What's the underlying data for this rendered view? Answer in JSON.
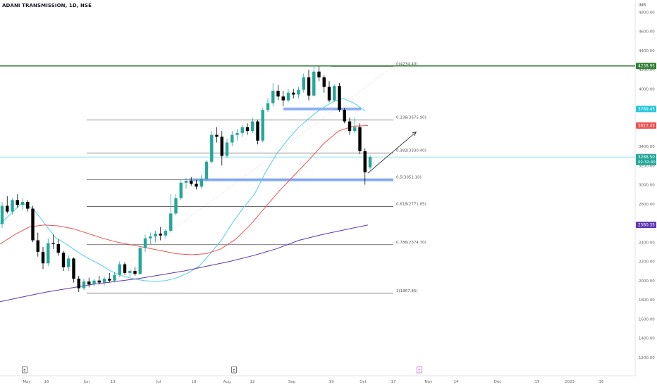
{
  "header": {
    "symbol_title": "ADANI TRANSMISSION, 1D, NSE",
    "currency": "INR"
  },
  "chart_data": {
    "type": "candlestick",
    "title": "ADANI TRANSMISSION, 1D, NSE",
    "price_axis": {
      "range": [
        1100,
        4800
      ],
      "ticks": [
        1200,
        1400,
        1600,
        1800,
        2000,
        2200,
        2400,
        2600,
        2800,
        3000,
        3200,
        3400,
        3600,
        3800,
        4000,
        4200,
        4400,
        4600,
        4800
      ],
      "unit": "INR"
    },
    "time_axis": {
      "labels": [
        "May",
        "16",
        "Jun",
        "13",
        "Jul",
        "18",
        "Aug",
        "12",
        "Sep",
        "19",
        "Oct",
        "17",
        "Nov",
        "14",
        "Dec",
        "19",
        "2023",
        "16"
      ],
      "event_markers": [
        {
          "label": "E",
          "at": "May"
        },
        {
          "label": "E",
          "at": "Aug"
        },
        {
          "label": "E",
          "at": "Nov",
          "style": "upcoming"
        }
      ]
    },
    "price_labels": [
      {
        "value": "4238.95",
        "color": "#2e7d32"
      },
      {
        "value": "3789.45",
        "color": "#26c6da"
      },
      {
        "value": "3617.45",
        "color": "#ef5350"
      },
      {
        "value": "3288.50",
        "sub": "02:32:40",
        "color": "#26a69a"
      },
      {
        "value": "2580.35",
        "color": "#5e35b1"
      }
    ],
    "horizontal_lines": [
      {
        "name": "resistance",
        "value": 4238.95,
        "color": "#2e7d32"
      },
      {
        "name": "last-price",
        "value": 3288.5,
        "color": "#80deea"
      }
    ],
    "fibonacci": {
      "color": "#555555",
      "levels": [
        {
          "label": "0(4234.40)",
          "value": 4234.4
        },
        {
          "label": "0.236(3675.90)",
          "value": 3675.9
        },
        {
          "label": "0.382(3330.40)",
          "value": 3330.4
        },
        {
          "label": "0.5(3051.10)",
          "value": 3051.1
        },
        {
          "label": "0.618(2771.85)",
          "value": 2771.85
        },
        {
          "label": "0.786(2374.30)",
          "value": 2374.3
        },
        {
          "label": "1(1867.85)",
          "value": 1867.85
        }
      ]
    },
    "zones": [
      {
        "name": "upper-zone",
        "value": 3790,
        "color": "#7fa7f0"
      },
      {
        "name": "lower-zone",
        "value": 3051,
        "color": "#7fa7f0"
      }
    ],
    "series": [
      {
        "name": "EMA 20",
        "color": "#4dd0e1",
        "values": [
          2590,
          2700,
          2810,
          2750,
          2600,
          2450,
          2380,
          2300,
          2230,
          2170,
          2100,
          2050,
          2020,
          2000,
          1990,
          2000,
          2030,
          2080,
          2150,
          2280,
          2420,
          2600,
          2760,
          2900,
          3130,
          3320,
          3470,
          3600,
          3700,
          3790,
          3860,
          3900,
          3850,
          3770
        ]
      },
      {
        "name": "EMA 50",
        "color": "#ef5350",
        "values": [
          2380,
          2480,
          2560,
          2580,
          2570,
          2540,
          2490,
          2440,
          2400,
          2370,
          2340,
          2310,
          2280,
          2270,
          2280,
          2330,
          2430,
          2580,
          2760,
          2940,
          3100,
          3260,
          3430,
          3560,
          3610,
          3617
        ]
      },
      {
        "name": "EMA 200",
        "color": "#5e35b1",
        "values": [
          1780,
          1830,
          1880,
          1920,
          1960,
          1990,
          2020,
          2060,
          2100,
          2150,
          2200,
          2260,
          2330,
          2420,
          2480,
          2530,
          2580
        ]
      }
    ],
    "candles": [
      {
        "o": 2590,
        "h": 2820,
        "l": 2550,
        "c": 2780
      },
      {
        "o": 2780,
        "h": 2880,
        "l": 2700,
        "c": 2720
      },
      {
        "o": 2720,
        "h": 2860,
        "l": 2690,
        "c": 2840
      },
      {
        "o": 2840,
        "h": 2900,
        "l": 2760,
        "c": 2790
      },
      {
        "o": 2790,
        "h": 2860,
        "l": 2740,
        "c": 2820
      },
      {
        "o": 2820,
        "h": 2840,
        "l": 2720,
        "c": 2750
      },
      {
        "o": 2750,
        "h": 2780,
        "l": 2400,
        "c": 2420
      },
      {
        "o": 2420,
        "h": 2500,
        "l": 2250,
        "c": 2300
      },
      {
        "o": 2300,
        "h": 2350,
        "l": 2120,
        "c": 2180
      },
      {
        "o": 2180,
        "h": 2440,
        "l": 2150,
        "c": 2390
      },
      {
        "o": 2390,
        "h": 2480,
        "l": 2330,
        "c": 2380
      },
      {
        "o": 2380,
        "h": 2430,
        "l": 2260,
        "c": 2290
      },
      {
        "o": 2290,
        "h": 2310,
        "l": 2100,
        "c": 2140
      },
      {
        "o": 2140,
        "h": 2260,
        "l": 2100,
        "c": 2230
      },
      {
        "o": 2230,
        "h": 2240,
        "l": 1980,
        "c": 2020
      },
      {
        "o": 2020,
        "h": 2050,
        "l": 1880,
        "c": 1920
      },
      {
        "o": 1920,
        "h": 2020,
        "l": 1900,
        "c": 1990
      },
      {
        "o": 1990,
        "h": 2030,
        "l": 1930,
        "c": 1960
      },
      {
        "o": 1960,
        "h": 2020,
        "l": 1940,
        "c": 2000
      },
      {
        "o": 2000,
        "h": 2050,
        "l": 1960,
        "c": 1980
      },
      {
        "o": 1980,
        "h": 2040,
        "l": 1950,
        "c": 2020
      },
      {
        "o": 2020,
        "h": 2080,
        "l": 1980,
        "c": 2000
      },
      {
        "o": 2000,
        "h": 2090,
        "l": 1980,
        "c": 2060
      },
      {
        "o": 2060,
        "h": 2200,
        "l": 2040,
        "c": 2170
      },
      {
        "o": 2170,
        "h": 2190,
        "l": 2060,
        "c": 2080
      },
      {
        "o": 2080,
        "h": 2120,
        "l": 2040,
        "c": 2100
      },
      {
        "o": 2100,
        "h": 2140,
        "l": 2050,
        "c": 2070
      },
      {
        "o": 2070,
        "h": 2360,
        "l": 2060,
        "c": 2340
      },
      {
        "o": 2340,
        "h": 2480,
        "l": 2300,
        "c": 2440
      },
      {
        "o": 2440,
        "h": 2500,
        "l": 2380,
        "c": 2460
      },
      {
        "o": 2460,
        "h": 2520,
        "l": 2400,
        "c": 2490
      },
      {
        "o": 2490,
        "h": 2560,
        "l": 2420,
        "c": 2470
      },
      {
        "o": 2470,
        "h": 2540,
        "l": 2440,
        "c": 2520
      },
      {
        "o": 2520,
        "h": 2900,
        "l": 2500,
        "c": 2700
      },
      {
        "o": 2700,
        "h": 2900,
        "l": 2680,
        "c": 2860
      },
      {
        "o": 2860,
        "h": 3050,
        "l": 2840,
        "c": 3020
      },
      {
        "o": 3020,
        "h": 3070,
        "l": 2960,
        "c": 3040
      },
      {
        "o": 3040,
        "h": 3080,
        "l": 2990,
        "c": 3010
      },
      {
        "o": 3010,
        "h": 3050,
        "l": 2950,
        "c": 2980
      },
      {
        "o": 2980,
        "h": 3100,
        "l": 2960,
        "c": 3060
      },
      {
        "o": 3060,
        "h": 3260,
        "l": 3040,
        "c": 3240
      },
      {
        "o": 3240,
        "h": 3560,
        "l": 3220,
        "c": 3520
      },
      {
        "o": 3520,
        "h": 3600,
        "l": 3440,
        "c": 3500
      },
      {
        "o": 3500,
        "h": 3560,
        "l": 3200,
        "c": 3300
      },
      {
        "o": 3300,
        "h": 3480,
        "l": 3280,
        "c": 3440
      },
      {
        "o": 3440,
        "h": 3560,
        "l": 3400,
        "c": 3520
      },
      {
        "o": 3520,
        "h": 3580,
        "l": 3460,
        "c": 3540
      },
      {
        "o": 3540,
        "h": 3620,
        "l": 3500,
        "c": 3600
      },
      {
        "o": 3600,
        "h": 3640,
        "l": 3520,
        "c": 3560
      },
      {
        "o": 3560,
        "h": 3700,
        "l": 3540,
        "c": 3660
      },
      {
        "o": 3660,
        "h": 3680,
        "l": 3420,
        "c": 3460
      },
      {
        "o": 3460,
        "h": 3800,
        "l": 3440,
        "c": 3780
      },
      {
        "o": 3780,
        "h": 3900,
        "l": 3760,
        "c": 3850
      },
      {
        "o": 3850,
        "h": 4060,
        "l": 3820,
        "c": 3980
      },
      {
        "o": 3980,
        "h": 4040,
        "l": 3880,
        "c": 3920
      },
      {
        "o": 3920,
        "h": 3980,
        "l": 3820,
        "c": 3880
      },
      {
        "o": 3880,
        "h": 4000,
        "l": 3860,
        "c": 3960
      },
      {
        "o": 3960,
        "h": 4000,
        "l": 3900,
        "c": 3940
      },
      {
        "o": 3940,
        "h": 4020,
        "l": 3900,
        "c": 3990
      },
      {
        "o": 3990,
        "h": 4160,
        "l": 3960,
        "c": 4120
      },
      {
        "o": 4120,
        "h": 4200,
        "l": 3880,
        "c": 3930
      },
      {
        "o": 3930,
        "h": 4240,
        "l": 3920,
        "c": 4180
      },
      {
        "o": 4180,
        "h": 4234,
        "l": 4080,
        "c": 4120
      },
      {
        "o": 4120,
        "h": 4140,
        "l": 3960,
        "c": 4020
      },
      {
        "o": 4020,
        "h": 4080,
        "l": 3860,
        "c": 3880
      },
      {
        "o": 3880,
        "h": 4050,
        "l": 3860,
        "c": 4030
      },
      {
        "o": 4030,
        "h": 4060,
        "l": 3760,
        "c": 3780
      },
      {
        "o": 3780,
        "h": 3800,
        "l": 3640,
        "c": 3660
      },
      {
        "o": 3660,
        "h": 3700,
        "l": 3520,
        "c": 3560
      },
      {
        "o": 3560,
        "h": 3700,
        "l": 3540,
        "c": 3600
      },
      {
        "o": 3600,
        "h": 3640,
        "l": 3320,
        "c": 3350
      },
      {
        "o": 3350,
        "h": 3380,
        "l": 3000,
        "c": 3130
      },
      {
        "o": 3180,
        "h": 3310,
        "l": 3160,
        "c": 3288
      }
    ],
    "trend_arrow": {
      "from_candle": 71,
      "from_price": 3120,
      "to_candle": 81,
      "to_price": 3550
    }
  }
}
